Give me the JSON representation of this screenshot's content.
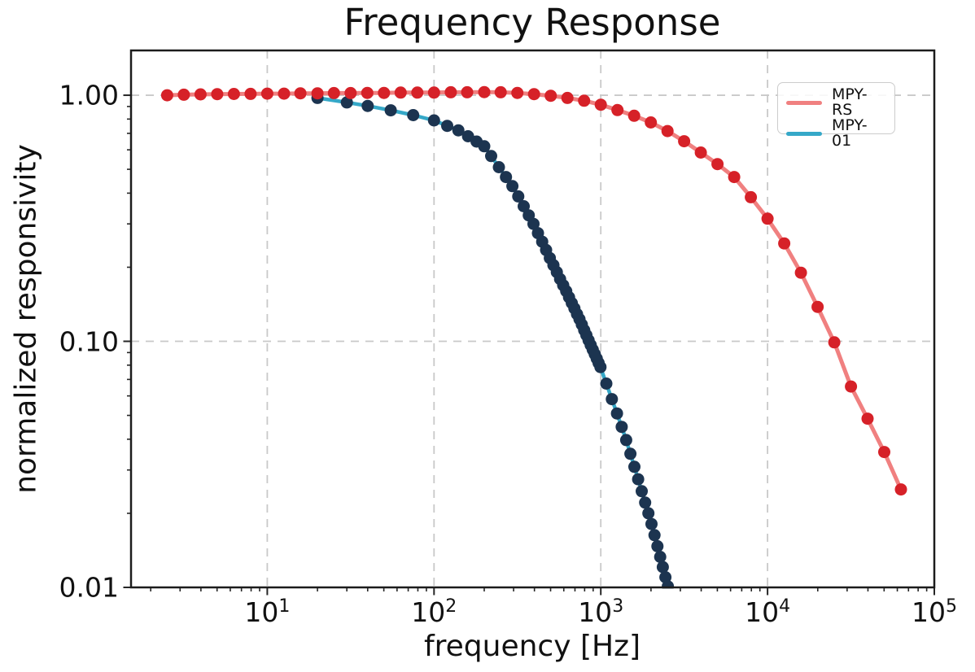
{
  "title": "Frequency Response",
  "axes": {
    "xlabel": "frequency [Hz]",
    "ylabel": "normalized responsivity",
    "x_scale": "log",
    "y_scale": "log",
    "x_tick_labels": [
      "10^1",
      "10^2",
      "10^3",
      "10^4",
      "10^5"
    ],
    "y_tick_labels": [
      "1.00",
      "0.10",
      "0.01"
    ]
  },
  "colors": {
    "grid": "#c9c9c9",
    "spine": "#1c1c1c",
    "tick": "#262626",
    "text": "#111111"
  },
  "chart_data": {
    "type": "line",
    "title": "Frequency Response",
    "xlabel": "frequency [Hz]",
    "ylabel": "normalized responsivity",
    "x_scale": "log",
    "y_scale": "log",
    "xlim_log": [
      0.183,
      5.0
    ],
    "ylim_log": [
      -2.0,
      0.182
    ],
    "x_tick_exponents": [
      1,
      2,
      3,
      4,
      5
    ],
    "y_ticks": [
      {
        "label": "1.00",
        "log_value": 0
      },
      {
        "label": "0.10",
        "log_value": -1
      },
      {
        "label": "0.01",
        "log_value": -2
      }
    ],
    "grid": true,
    "grid_style": "dashed",
    "legend_position": "upper right",
    "series": [
      {
        "name": "MPY-RS",
        "line_color": "#f08080",
        "marker_color": "#d62128",
        "marker": "circle",
        "x": [
          2.51,
          3.16,
          3.98,
          5.01,
          6.31,
          7.94,
          10,
          12.6,
          15.8,
          20,
          25.1,
          31.6,
          39.8,
          50.1,
          63.1,
          79.4,
          100,
          126,
          158,
          200,
          251,
          316,
          398,
          501,
          631,
          794,
          1000,
          1259,
          1585,
          1995,
          2512,
          3162,
          3981,
          5012,
          6310,
          7943,
          10000,
          12589,
          15849,
          19953,
          25119,
          31623,
          39811,
          50119,
          63096
        ],
        "y": [
          1.0,
          1.005,
          1.008,
          1.01,
          1.012,
          1.013,
          1.015,
          1.015,
          1.018,
          1.018,
          1.02,
          1.02,
          1.022,
          1.022,
          1.025,
          1.025,
          1.025,
          1.028,
          1.028,
          1.03,
          1.028,
          1.022,
          1.01,
          0.995,
          0.975,
          0.95,
          0.915,
          0.87,
          0.825,
          0.775,
          0.715,
          0.65,
          0.585,
          0.525,
          0.465,
          0.385,
          0.315,
          0.25,
          0.19,
          0.138,
          0.099,
          0.0655,
          0.0485,
          0.0355,
          0.025
        ]
      },
      {
        "name": "MPY-01",
        "line_color": "#35a8c8",
        "marker_color": "#1c3450",
        "marker": "circle",
        "x": [
          20,
          30,
          40,
          55,
          75,
          100,
          120,
          140,
          160,
          180,
          200,
          220,
          245,
          270,
          295,
          320,
          345,
          370,
          395,
          420,
          445,
          470,
          495,
          520,
          545,
          570,
          595,
          620,
          645,
          670,
          695,
          720,
          745,
          770,
          795,
          820,
          845,
          870,
          895,
          920,
          945,
          970,
          995,
          1080,
          1165,
          1250,
          1335,
          1420,
          1505,
          1590,
          1675,
          1760,
          1845,
          1930,
          2015,
          2100,
          2185,
          2270,
          2355,
          2440,
          2525
        ],
        "y": [
          0.975,
          0.935,
          0.905,
          0.868,
          0.83,
          0.79,
          0.751,
          0.72,
          0.681,
          0.648,
          0.62,
          0.566,
          0.51,
          0.465,
          0.427,
          0.388,
          0.354,
          0.325,
          0.3,
          0.275,
          0.254,
          0.235,
          0.218,
          0.204,
          0.191,
          0.179,
          0.169,
          0.16,
          0.151,
          0.143,
          0.136,
          0.129,
          0.123,
          0.117,
          0.111,
          0.106,
          0.101,
          0.0966,
          0.0925,
          0.0887,
          0.0851,
          0.0817,
          0.0786,
          0.0673,
          0.0582,
          0.0509,
          0.0449,
          0.0397,
          0.0349,
          0.0309,
          0.0275,
          0.0246,
          0.0221,
          0.02,
          0.0181,
          0.0163,
          0.0147,
          0.0133,
          0.0121,
          0.011,
          0.0101
        ]
      }
    ]
  }
}
